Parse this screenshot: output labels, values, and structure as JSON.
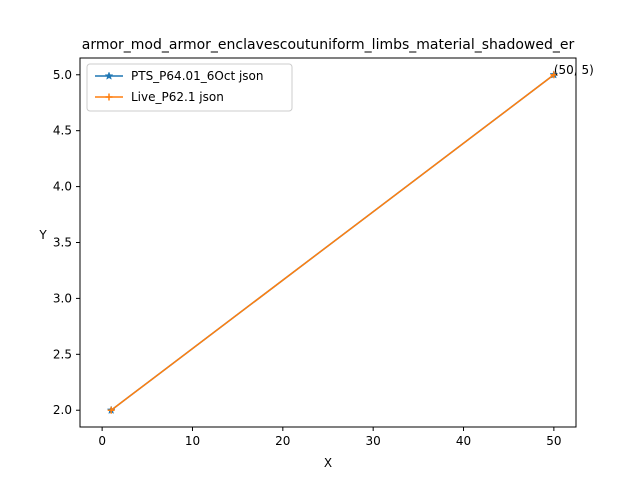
{
  "chart_data": {
    "type": "line",
    "title": "armor_mod_armor_enclavescoutuniform_limbs_material_shadowed_er",
    "xlabel": "X",
    "ylabel": "Y",
    "xlim": [
      -2.45,
      52.45
    ],
    "ylim": [
      1.85,
      5.15
    ],
    "xticks": [
      0,
      10,
      20,
      30,
      40,
      50
    ],
    "yticks": [
      2.0,
      2.5,
      3.0,
      3.5,
      4.0,
      4.5,
      5.0
    ],
    "xtick_labels": [
      "0",
      "10",
      "20",
      "30",
      "40",
      "50"
    ],
    "ytick_labels": [
      "2.0",
      "2.5",
      "3.0",
      "3.5",
      "4.0",
      "4.5",
      "5.0"
    ],
    "grid": false,
    "legend_position": "upper-left",
    "series": [
      {
        "name": "PTS_P64.01_6Oct json",
        "x": [
          1,
          50
        ],
        "y": [
          2,
          5
        ],
        "color": "#1f77b4",
        "marker": "star"
      },
      {
        "name": "Live_P62.1 json",
        "x": [
          1,
          50
        ],
        "y": [
          2,
          5
        ],
        "color": "#ff7f0e",
        "marker": "plus"
      }
    ],
    "annotations": [
      {
        "text": "(50, 5)",
        "x": 50,
        "y": 5
      }
    ]
  }
}
